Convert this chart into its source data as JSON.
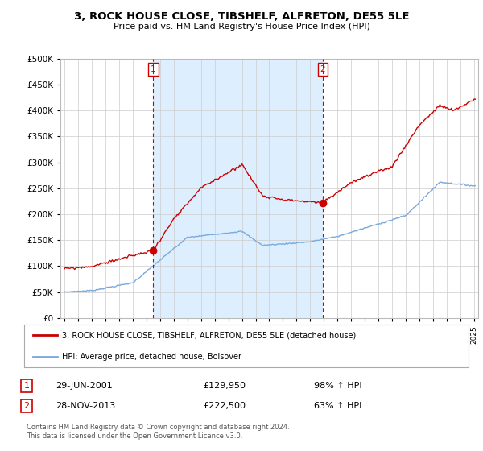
{
  "title": "3, ROCK HOUSE CLOSE, TIBSHELF, ALFRETON, DE55 5LE",
  "subtitle": "Price paid vs. HM Land Registry's House Price Index (HPI)",
  "legend_line1": "3, ROCK HOUSE CLOSE, TIBSHELF, ALFRETON, DE55 5LE (detached house)",
  "legend_line2": "HPI: Average price, detached house, Bolsover",
  "transaction1_label": "1",
  "transaction1_date": "29-JUN-2001",
  "transaction1_price": "£129,950",
  "transaction1_hpi": "98% ↑ HPI",
  "transaction2_label": "2",
  "transaction2_date": "28-NOV-2013",
  "transaction2_price": "£222,500",
  "transaction2_hpi": "63% ↑ HPI",
  "footer": "Contains HM Land Registry data © Crown copyright and database right 2024.\nThis data is licensed under the Open Government Licence v3.0.",
  "hpi_color": "#7aaadd",
  "price_color": "#cc0000",
  "shade_color": "#ddeeff",
  "marker1_year": 2001.5,
  "marker2_year": 2013.92,
  "marker1_price": 129950,
  "marker2_price": 222500,
  "ylim_min": 0,
  "ylim_max": 500000,
  "xlim_min": 1994.7,
  "xlim_max": 2025.3,
  "background_color": "#ffffff",
  "grid_color": "#cccccc"
}
